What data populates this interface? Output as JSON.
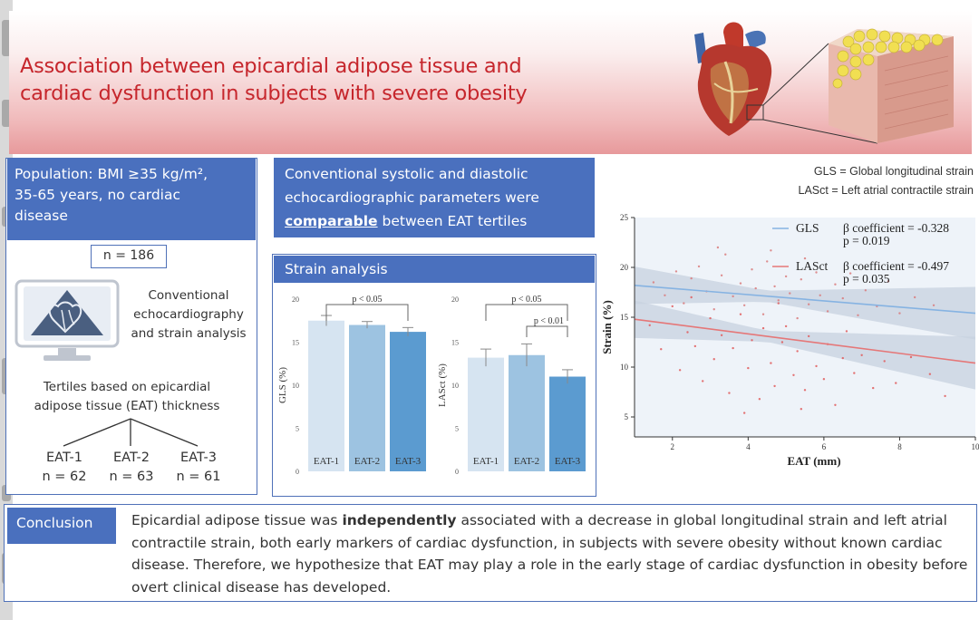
{
  "title": {
    "line1": "Association between epicardial adipose tissue and",
    "line2": "cardiac dysfunction in subjects with severe obesity"
  },
  "population": {
    "title_l1": "Population: BMI ≥35 kg/m²,",
    "title_l2": "35-65 years, no cardiac",
    "title_l3": "disease",
    "n": "n = 186",
    "method_l1": "Conventional",
    "method_l2": "echocardiography",
    "method_l3": "and strain analysis",
    "tertile_l1": "Tertiles based on epicardial",
    "tertile_l2": "adipose tissue (EAT) thickness",
    "groups": [
      {
        "name": "EAT-1",
        "n": "n = 62"
      },
      {
        "name": "EAT-2",
        "n": "n = 63"
      },
      {
        "name": "EAT-3",
        "n": "n = 61"
      }
    ]
  },
  "conventional": {
    "l1": "Conventional systolic and diastolic",
    "l2": "echocardiographic parameters were",
    "highlight": "comparable",
    "l3_rest": " between EAT tertiles"
  },
  "strain": {
    "title": "Strain analysis"
  },
  "definitions": {
    "gls": "GLS = Global longitudinal strain",
    "lasct": "LASct = Left atrial contractile strain"
  },
  "conclusion": {
    "label": "Conclusion",
    "pre": "Epicardial adipose tissue was ",
    "bold": "independently",
    "post": " associated with a decrease in global longitudinal strain and left atrial contractile strain, both early markers of cardiac dysfunction, in subjects with severe obesity without known cardiac disease. Therefore, we hypothesize that EAT may play a role in the early stage of cardiac dysfunction in obesity before overt clinical disease has developed."
  },
  "colors": {
    "title_red": "#c6262c",
    "box_blue": "#4a70be",
    "bar1": "#d6e4f1",
    "bar2": "#9dc3e1",
    "bar3": "#5b9bd0",
    "gls_line": "#86b3e2",
    "lasct_line": "#e57778"
  },
  "chart_data": [
    {
      "type": "bar",
      "categories": [
        "EAT-1",
        "EAT-2",
        "EAT-3"
      ],
      "values": [
        17.5,
        17.0,
        16.2
      ],
      "errors": [
        0.6,
        0.4,
        0.5
      ],
      "ylabel": "GLS (%)",
      "ylim": [
        0,
        20
      ],
      "yticks": [
        0,
        5,
        10,
        15,
        20
      ],
      "annotations": [
        {
          "text": "p < 0.05",
          "from": 0,
          "to": 2
        }
      ]
    },
    {
      "type": "bar",
      "categories": [
        "EAT-1",
        "EAT-2",
        "EAT-3"
      ],
      "values": [
        13.2,
        13.5,
        11.0
      ],
      "errors": [
        1.0,
        1.3,
        0.8
      ],
      "ylabel": "LASct (%)",
      "ylim": [
        0,
        20
      ],
      "yticks": [
        0,
        5,
        10,
        15,
        20
      ],
      "annotations": [
        {
          "text": "p < 0.05",
          "from": 0,
          "to": 2
        },
        {
          "text": "p < 0.01",
          "from": 1,
          "to": 2
        }
      ]
    },
    {
      "type": "scatter",
      "xlabel": "EAT (mm)",
      "ylabel": "Strain (%)",
      "xlim": [
        1,
        10
      ],
      "ylim": [
        3,
        25
      ],
      "xticks": [
        2,
        4,
        6,
        8,
        10
      ],
      "yticks": [
        5,
        10,
        15,
        20,
        25
      ],
      "series": [
        {
          "name": "GLS",
          "stat": "β coefficient = -0.328",
          "p": "p = 0.019",
          "line": {
            "x0": 1.0,
            "y0": 18.2,
            "x1": 10.0,
            "y1": 15.4
          },
          "points": [
            [
              1.5,
              18.5
            ],
            [
              1.8,
              17.2
            ],
            [
              2.1,
              19.6
            ],
            [
              2.3,
              16.4
            ],
            [
              2.5,
              18.9
            ],
            [
              2.7,
              20.1
            ],
            [
              2.9,
              17.6
            ],
            [
              3.1,
              15.8
            ],
            [
              3.3,
              19.2
            ],
            [
              3.4,
              21.3
            ],
            [
              3.6,
              17.1
            ],
            [
              3.8,
              18.4
            ],
            [
              3.9,
              16.2
            ],
            [
              4.1,
              19.8
            ],
            [
              4.2,
              17.9
            ],
            [
              4.4,
              15.3
            ],
            [
              4.5,
              20.6
            ],
            [
              4.7,
              18.1
            ],
            [
              4.8,
              16.7
            ],
            [
              5.0,
              19.1
            ],
            [
              5.1,
              17.4
            ],
            [
              5.3,
              14.9
            ],
            [
              5.4,
              18.8
            ],
            [
              5.6,
              16.3
            ],
            [
              5.8,
              19.5
            ],
            [
              5.9,
              17.2
            ],
            [
              6.1,
              15.6
            ],
            [
              6.3,
              18.3
            ],
            [
              6.5,
              16.9
            ],
            [
              6.7,
              19.4
            ],
            [
              6.9,
              15.2
            ],
            [
              7.1,
              17.7
            ],
            [
              7.4,
              16.1
            ],
            [
              7.7,
              18.6
            ],
            [
              8.0,
              15.4
            ],
            [
              8.4,
              17.0
            ],
            [
              8.9,
              16.2
            ],
            [
              3.2,
              22.0
            ],
            [
              4.6,
              21.7
            ],
            [
              5.5,
              20.9
            ]
          ]
        },
        {
          "name": "LASct",
          "stat": "β coefficient = -0.497",
          "p": "p = 0.035",
          "line": {
            "x0": 1.0,
            "y0": 14.8,
            "x1": 10.0,
            "y1": 10.4
          },
          "points": [
            [
              1.4,
              14.2
            ],
            [
              1.7,
              11.8
            ],
            [
              2.0,
              16.1
            ],
            [
              2.2,
              9.7
            ],
            [
              2.4,
              13.5
            ],
            [
              2.6,
              12.1
            ],
            [
              2.8,
              8.6
            ],
            [
              3.0,
              14.9
            ],
            [
              3.1,
              10.8
            ],
            [
              3.3,
              13.2
            ],
            [
              3.5,
              7.4
            ],
            [
              3.6,
              11.9
            ],
            [
              3.8,
              15.3
            ],
            [
              4.0,
              9.9
            ],
            [
              4.1,
              12.7
            ],
            [
              4.3,
              6.8
            ],
            [
              4.4,
              13.9
            ],
            [
              4.6,
              10.4
            ],
            [
              4.7,
              8.1
            ],
            [
              4.9,
              12.5
            ],
            [
              5.0,
              14.1
            ],
            [
              5.2,
              9.2
            ],
            [
              5.3,
              11.6
            ],
            [
              5.5,
              7.7
            ],
            [
              5.6,
              13.1
            ],
            [
              5.8,
              10.1
            ],
            [
              6.0,
              8.8
            ],
            [
              6.1,
              12.3
            ],
            [
              6.3,
              6.2
            ],
            [
              6.5,
              10.9
            ],
            [
              6.6,
              13.6
            ],
            [
              6.8,
              9.4
            ],
            [
              7.0,
              11.2
            ],
            [
              7.3,
              7.9
            ],
            [
              7.6,
              10.6
            ],
            [
              7.9,
              8.4
            ],
            [
              8.3,
              11.0
            ],
            [
              8.8,
              9.3
            ],
            [
              9.2,
              7.1
            ],
            [
              3.9,
              5.4
            ],
            [
              5.4,
              5.8
            ],
            [
              2.5,
              17.0
            ],
            [
              4.8,
              16.4
            ]
          ]
        }
      ]
    }
  ]
}
